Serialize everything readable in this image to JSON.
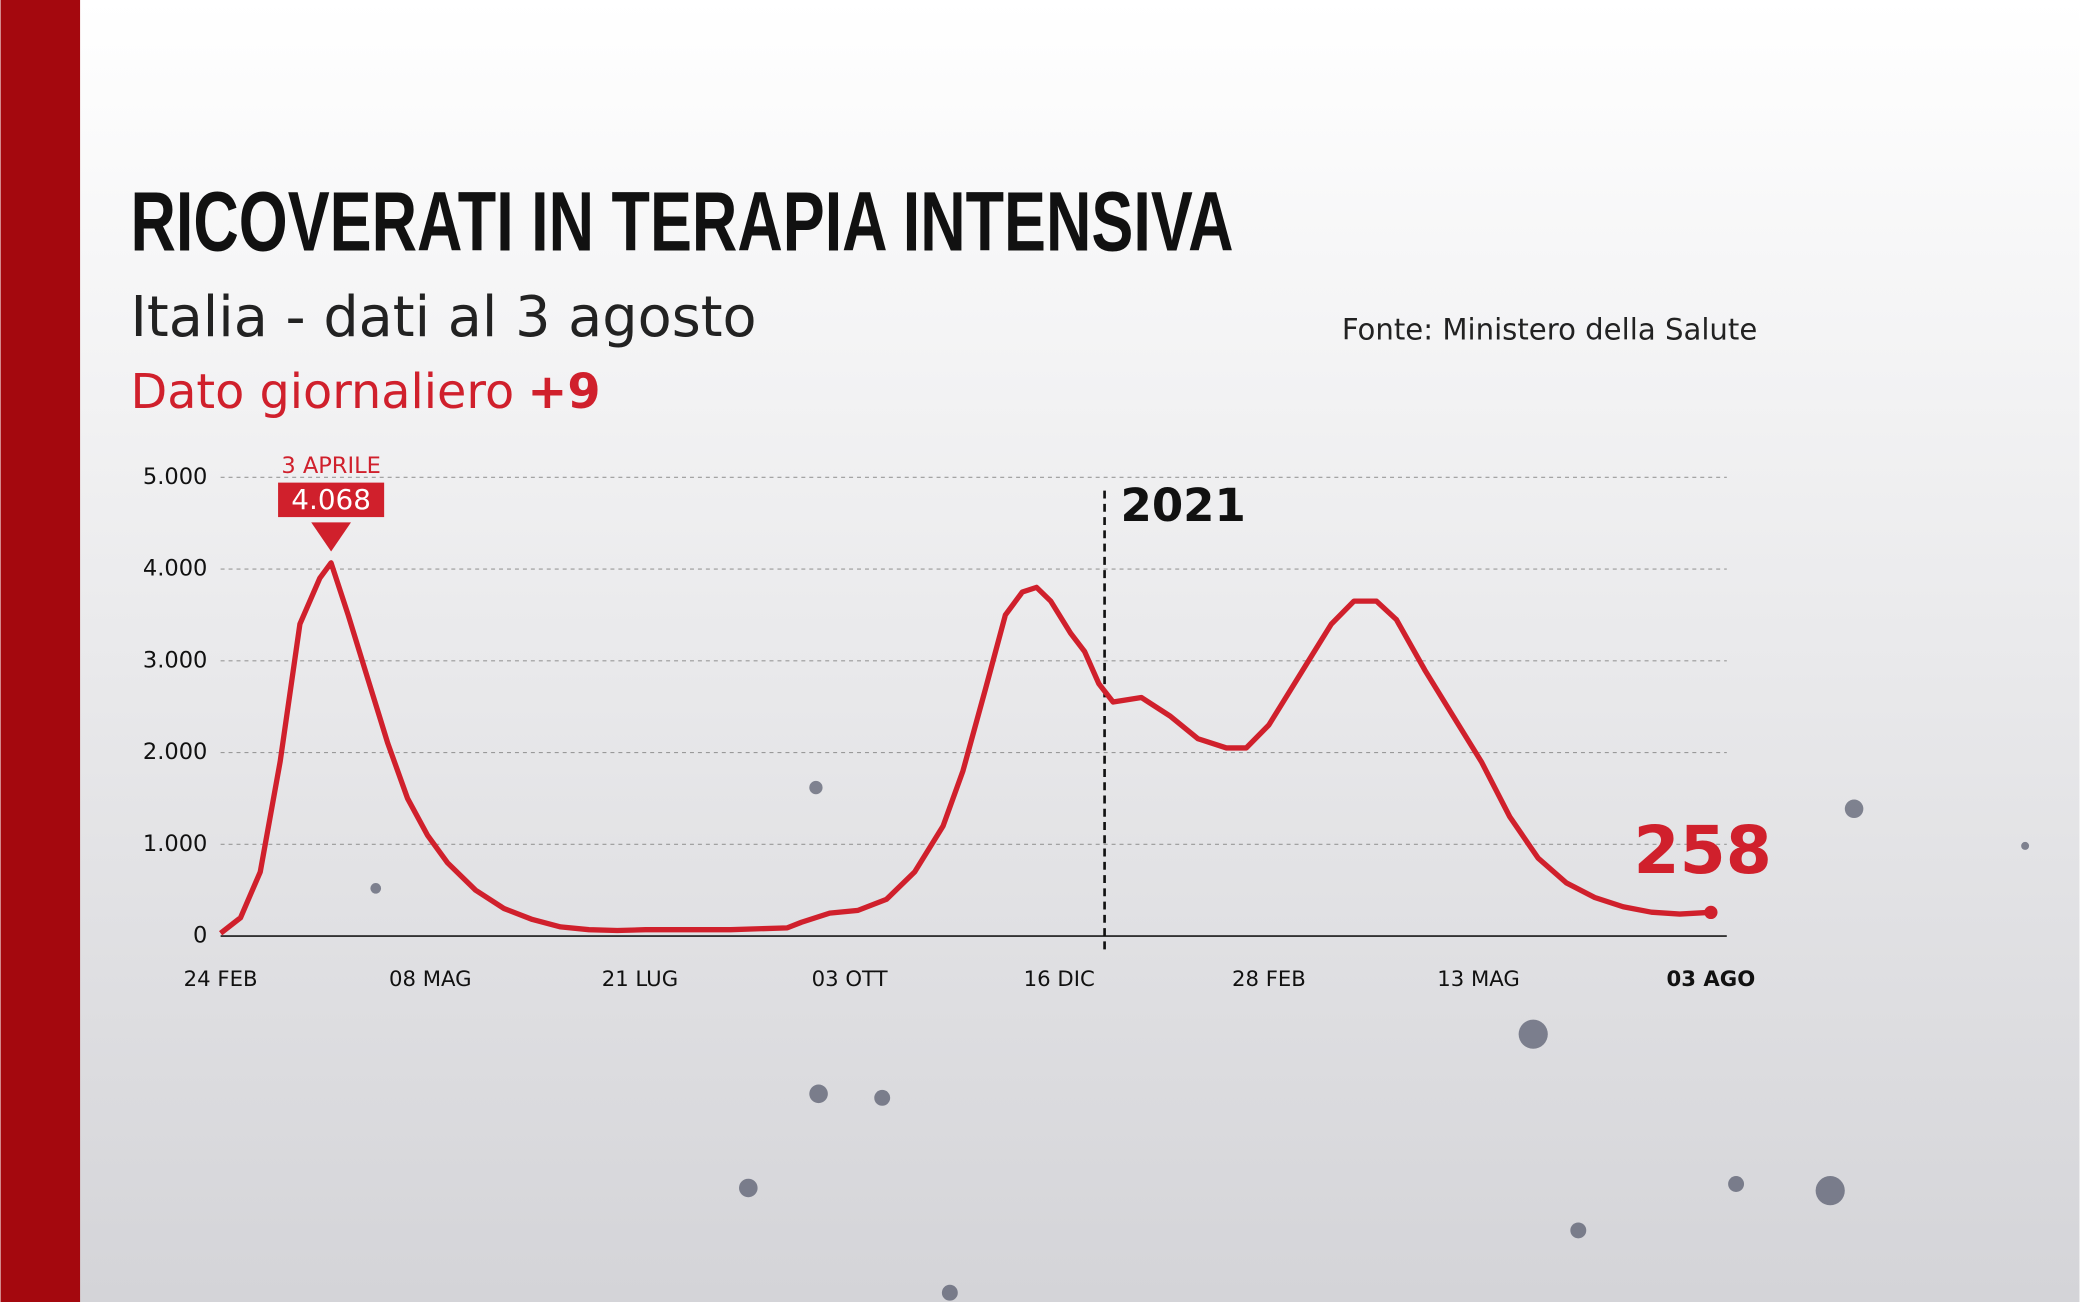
{
  "chart_data": {
    "type": "line",
    "title": "RICOVERATI IN TERAPIA INTENSIVA",
    "subtitle": "Italia - dati al 3 agosto",
    "source": "Fonte: Ministero della Salute",
    "daily_label": "Dato giornaliero",
    "daily_value": "+9",
    "color": "#d0202c",
    "x": [
      0,
      7,
      14,
      21,
      28,
      35,
      39,
      45,
      52,
      59,
      66,
      73,
      80,
      90,
      100,
      110,
      120,
      130,
      140,
      150,
      160,
      170,
      180,
      190,
      200,
      205,
      215,
      225,
      235,
      245,
      255,
      262,
      270,
      277,
      283,
      288,
      293,
      300,
      305,
      310,
      315,
      325,
      335,
      345,
      355,
      362,
      370,
      378,
      385,
      392,
      400,
      408,
      415,
      425,
      435,
      445,
      455,
      465,
      475,
      485,
      495,
      505,
      515,
      526
    ],
    "values": [
      30,
      200,
      700,
      1900,
      3400,
      3900,
      4068,
      3500,
      2800,
      2100,
      1500,
      1100,
      800,
      500,
      300,
      180,
      100,
      70,
      60,
      70,
      70,
      70,
      70,
      80,
      90,
      150,
      250,
      280,
      400,
      700,
      1200,
      1800,
      2700,
      3500,
      3750,
      3800,
      3650,
      3300,
      3100,
      2750,
      2550,
      2600,
      2400,
      2150,
      2050,
      2050,
      2300,
      2700,
      3050,
      3400,
      3650,
      3650,
      3450,
      2900,
      2400,
      1900,
      1300,
      850,
      580,
      420,
      320,
      260,
      240,
      258
    ],
    "xlim": [
      0,
      526
    ],
    "xticks": [
      {
        "value": 0,
        "label": "24 FEB"
      },
      {
        "value": 74,
        "label": "08 MAG"
      },
      {
        "value": 148,
        "label": "21 LUG"
      },
      {
        "value": 222,
        "label": "03 OTT"
      },
      {
        "value": 296,
        "label": "16 DIC"
      },
      {
        "value": 370,
        "label": "28 FEB"
      },
      {
        "value": 444,
        "label": "13 MAG"
      },
      {
        "value": 526,
        "label": "03 AGO"
      }
    ],
    "ylim": [
      0,
      5000
    ],
    "yticks": [
      0,
      {
        "value": 1000,
        "label": "1.000"
      },
      {
        "value": 2000,
        "label": "2.000"
      },
      {
        "value": 3000,
        "label": "3.000"
      },
      {
        "value": 4000,
        "label": "4.000"
      },
      {
        "value": 5000,
        "label": "5.000"
      }
    ],
    "grid": true,
    "year_marker": {
      "x": 312,
      "label": "2021"
    },
    "peak": {
      "x": 39,
      "label": "3 APRILE",
      "value": 4068,
      "value_label": "4.068"
    },
    "last": {
      "x": 526,
      "value": 258
    }
  }
}
